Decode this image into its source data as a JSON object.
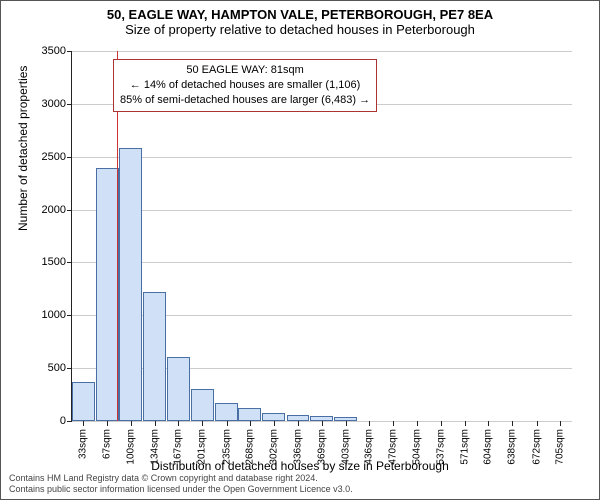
{
  "titles": {
    "line1": "50, EAGLE WAY, HAMPTON VALE, PETERBOROUGH, PE7 8EA",
    "line2": "Size of property relative to detached houses in Peterborough"
  },
  "chart": {
    "type": "histogram",
    "y_axis_label": "Number of detached properties",
    "x_axis_label": "Distribution of detached houses by size in Peterborough",
    "ylim": [
      0,
      3500
    ],
    "y_ticks": [
      0,
      500,
      1000,
      1500,
      2000,
      2500,
      3000,
      3500
    ],
    "x_ticks": [
      "33sqm",
      "67sqm",
      "100sqm",
      "134sqm",
      "167sqm",
      "201sqm",
      "235sqm",
      "268sqm",
      "302sqm",
      "336sqm",
      "369sqm",
      "403sqm",
      "436sqm",
      "470sqm",
      "504sqm",
      "537sqm",
      "571sqm",
      "604sqm",
      "638sqm",
      "672sqm",
      "705sqm"
    ],
    "x_range_sqm": [
      17,
      722
    ],
    "bars_sqm_value": [
      [
        33,
        370
      ],
      [
        67,
        2390
      ],
      [
        100,
        2580
      ],
      [
        134,
        1220
      ],
      [
        167,
        610
      ],
      [
        201,
        300
      ],
      [
        235,
        170
      ],
      [
        268,
        120
      ],
      [
        302,
        80
      ],
      [
        336,
        55
      ],
      [
        369,
        45
      ],
      [
        403,
        40
      ],
      [
        436,
        0
      ],
      [
        470,
        0
      ],
      [
        504,
        0
      ],
      [
        537,
        0
      ],
      [
        571,
        0
      ],
      [
        604,
        0
      ],
      [
        638,
        0
      ],
      [
        672,
        0
      ],
      [
        705,
        0
      ]
    ],
    "bar_fill": "#cfe0f7",
    "bar_stroke": "#4a6fa5",
    "grid_color": "#cccccc",
    "marker_line_sqm": 81,
    "marker_color": "#cc3333",
    "bar_bin_width_sqm": 33
  },
  "annotation": {
    "line1": "50 EAGLE WAY: 81sqm",
    "line2": "← 14% of detached houses are smaller (1,106)",
    "line3": "85% of semi-detached houses are larger (6,483) →"
  },
  "footer": {
    "line1": "Contains HM Land Registry data © Crown copyright and database right 2024.",
    "line2": "Contains public sector information licensed under the Open Government Licence v3.0."
  }
}
